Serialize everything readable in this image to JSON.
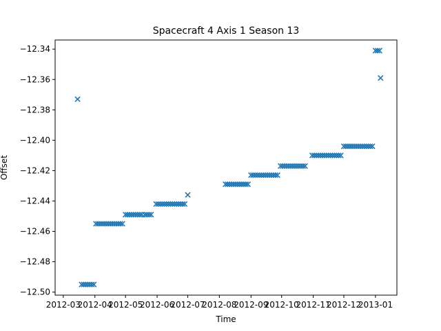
{
  "chart_data": {
    "type": "scatter",
    "title": "Spacecraft 4 Axis 1 Season 13",
    "xlabel": "Time",
    "ylabel": "Offset",
    "x_ticks": [
      "2012-03",
      "2012-04",
      "2012-05",
      "2012-06",
      "2012-07",
      "2012-08",
      "2012-09",
      "2012-10",
      "2012-11",
      "2012-12",
      "2013-01"
    ],
    "y_ticks": [
      "−12.34",
      "−12.36",
      "−12.38",
      "−12.40",
      "−12.42",
      "−12.44",
      "−12.46",
      "−12.48",
      "−12.50"
    ],
    "xlim": [
      "2012-02-22",
      "2013-01-22"
    ],
    "ylim": [
      -12.502,
      -12.334
    ],
    "grid": false,
    "marker": "x",
    "color": "#1f77b4",
    "series": [
      {
        "x": [
          "2012-03-15",
          "2012-03-19",
          "2012-03-21",
          "2012-03-23",
          "2012-03-25",
          "2012-03-27",
          "2012-03-29",
          "2012-03-31",
          "2012-04-02",
          "2012-04-04",
          "2012-04-06",
          "2012-04-08",
          "2012-04-10",
          "2012-04-12",
          "2012-04-14",
          "2012-04-16",
          "2012-04-18",
          "2012-04-20",
          "2012-04-22",
          "2012-04-24",
          "2012-04-26",
          "2012-04-28",
          "2012-05-01",
          "2012-05-03",
          "2012-05-05",
          "2012-05-07",
          "2012-05-09",
          "2012-05-11",
          "2012-05-13",
          "2012-05-15",
          "2012-05-17",
          "2012-05-20",
          "2012-05-22",
          "2012-05-24",
          "2012-05-26",
          "2012-05-31",
          "2012-06-02",
          "2012-06-04",
          "2012-06-06",
          "2012-06-08",
          "2012-06-10",
          "2012-06-12",
          "2012-06-14",
          "2012-06-16",
          "2012-06-18",
          "2012-06-20",
          "2012-06-22",
          "2012-06-24",
          "2012-06-26",
          "2012-06-28",
          "2012-07-01",
          "2012-08-07",
          "2012-08-09",
          "2012-08-11",
          "2012-08-13",
          "2012-08-15",
          "2012-08-17",
          "2012-08-19",
          "2012-08-21",
          "2012-08-23",
          "2012-08-25",
          "2012-08-27",
          "2012-08-29",
          "2012-09-01",
          "2012-09-03",
          "2012-09-05",
          "2012-09-07",
          "2012-09-09",
          "2012-09-11",
          "2012-09-13",
          "2012-09-15",
          "2012-09-17",
          "2012-09-19",
          "2012-09-21",
          "2012-09-23",
          "2012-09-25",
          "2012-09-27",
          "2012-09-30",
          "2012-10-02",
          "2012-10-04",
          "2012-10-06",
          "2012-10-08",
          "2012-10-10",
          "2012-10-12",
          "2012-10-14",
          "2012-10-16",
          "2012-10-18",
          "2012-10-20",
          "2012-10-22",
          "2012-10-24",
          "2012-10-31",
          "2012-11-02",
          "2012-11-04",
          "2012-11-06",
          "2012-11-08",
          "2012-11-10",
          "2012-11-12",
          "2012-11-14",
          "2012-11-16",
          "2012-11-18",
          "2012-11-20",
          "2012-11-22",
          "2012-11-24",
          "2012-11-26",
          "2012-11-28",
          "2012-12-01",
          "2012-12-03",
          "2012-12-05",
          "2012-12-07",
          "2012-12-09",
          "2012-12-11",
          "2012-12-13",
          "2012-12-15",
          "2012-12-17",
          "2012-12-19",
          "2012-12-21",
          "2012-12-23",
          "2012-12-25",
          "2012-12-27",
          "2012-12-29",
          "2013-01-01",
          "2013-01-03",
          "2013-01-05",
          "2013-01-06"
        ],
        "y": [
          -12.373,
          -12.495,
          -12.495,
          -12.495,
          -12.495,
          -12.495,
          -12.495,
          -12.495,
          -12.455,
          -12.455,
          -12.455,
          -12.455,
          -12.455,
          -12.455,
          -12.455,
          -12.455,
          -12.455,
          -12.455,
          -12.455,
          -12.455,
          -12.455,
          -12.455,
          -12.449,
          -12.449,
          -12.449,
          -12.449,
          -12.449,
          -12.449,
          -12.449,
          -12.449,
          -12.449,
          -12.449,
          -12.449,
          -12.449,
          -12.449,
          -12.442,
          -12.442,
          -12.442,
          -12.442,
          -12.442,
          -12.442,
          -12.442,
          -12.442,
          -12.442,
          -12.442,
          -12.442,
          -12.442,
          -12.442,
          -12.442,
          -12.442,
          -12.436,
          -12.429,
          -12.429,
          -12.429,
          -12.429,
          -12.429,
          -12.429,
          -12.429,
          -12.429,
          -12.429,
          -12.429,
          -12.429,
          -12.429,
          -12.423,
          -12.423,
          -12.423,
          -12.423,
          -12.423,
          -12.423,
          -12.423,
          -12.423,
          -12.423,
          -12.423,
          -12.423,
          -12.423,
          -12.423,
          -12.423,
          -12.417,
          -12.417,
          -12.417,
          -12.417,
          -12.417,
          -12.417,
          -12.417,
          -12.417,
          -12.417,
          -12.417,
          -12.417,
          -12.417,
          -12.417,
          -12.41,
          -12.41,
          -12.41,
          -12.41,
          -12.41,
          -12.41,
          -12.41,
          -12.41,
          -12.41,
          -12.41,
          -12.41,
          -12.41,
          -12.41,
          -12.41,
          -12.41,
          -12.404,
          -12.404,
          -12.404,
          -12.404,
          -12.404,
          -12.404,
          -12.404,
          -12.404,
          -12.404,
          -12.404,
          -12.404,
          -12.404,
          -12.404,
          -12.404,
          -12.404,
          -12.341,
          -12.341,
          -12.341,
          -12.359
        ]
      }
    ]
  }
}
